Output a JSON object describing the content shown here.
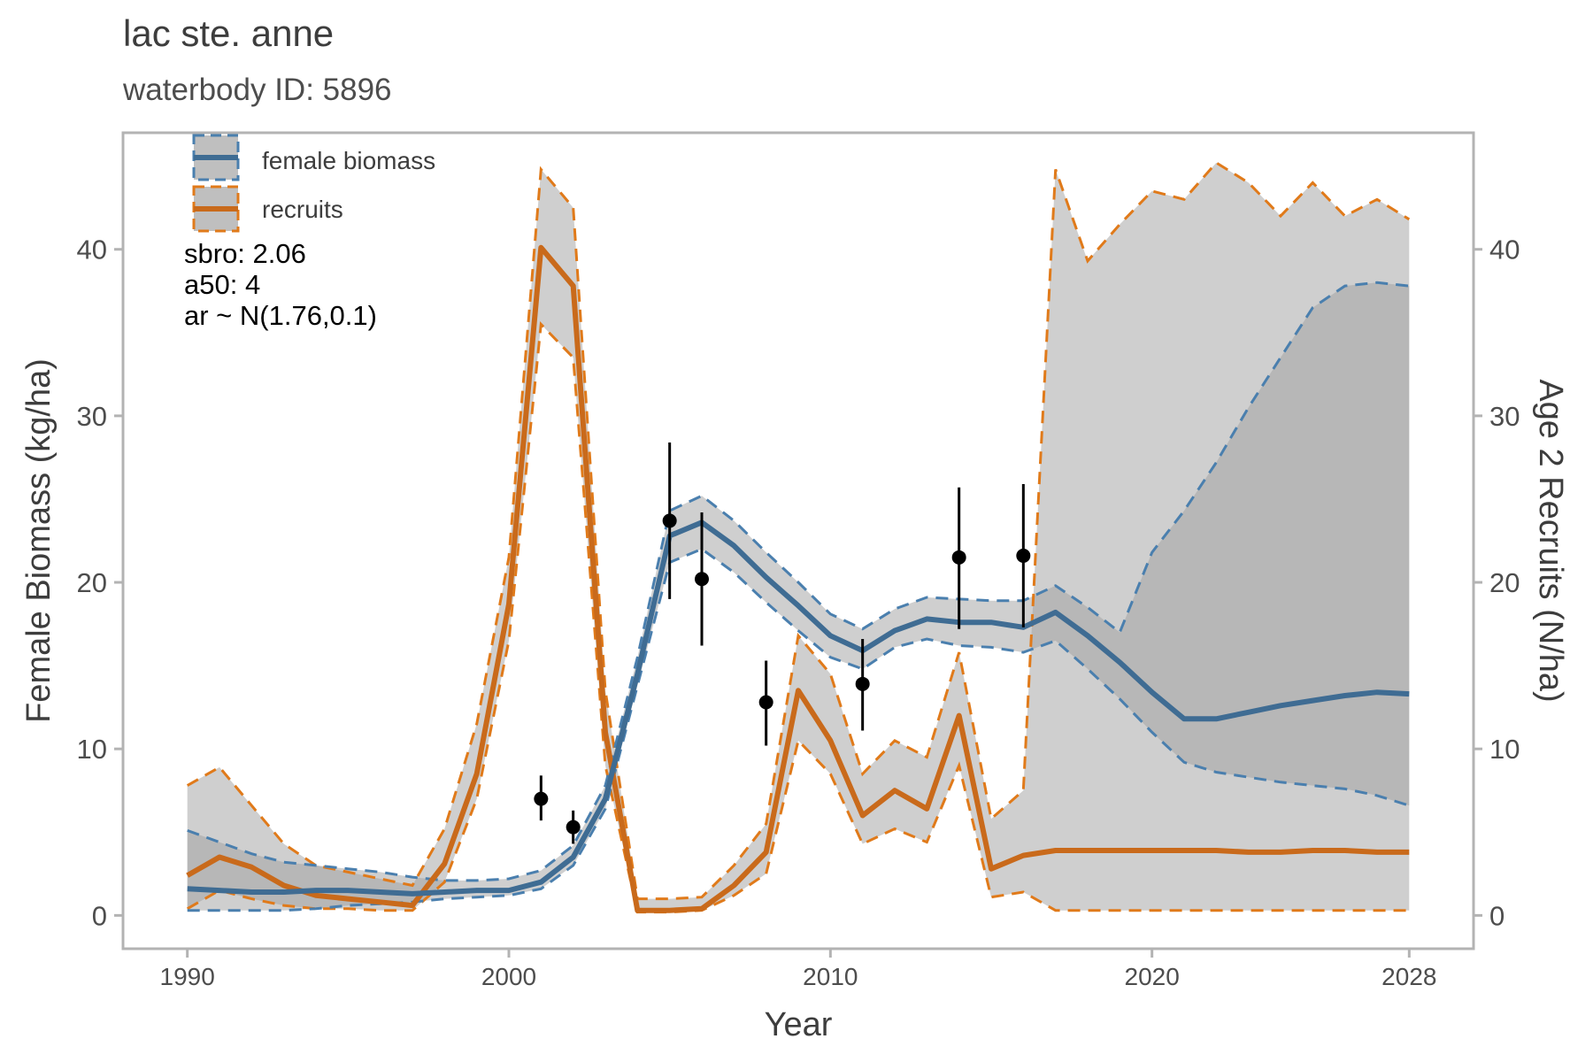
{
  "chart_data": {
    "type": "line",
    "title": "lac ste. anne",
    "subtitle": "waterbody ID: 5896",
    "xlabel": "Year",
    "ylabel_left": "Female Biomass (kg/ha)",
    "ylabel_right": "Age 2 Recruits (N/ha)",
    "xlim": [
      1988,
      2030
    ],
    "ylim": [
      -2,
      47
    ],
    "x_ticks": [
      1990,
      2000,
      2010,
      2020,
      2028
    ],
    "y_ticks": [
      0,
      10,
      20,
      30,
      40
    ],
    "grid": false,
    "legend_position": "top-left",
    "legend": [
      "female biomass",
      "recruits"
    ],
    "annotations": [
      "sbro: 2.06",
      "a50: 4",
      "ar ~ N(1.76,0.1)"
    ],
    "colors": {
      "female_biomass": "#3f6c93",
      "female_biomass_dash": "#4a7fae",
      "recruits": "#c96a1b",
      "recruits_dash": "#e07a1a",
      "band_light": "#cfcfcf",
      "band_dark": "#a6a6a6",
      "points": "#000000"
    },
    "series": [
      {
        "name": "female biomass",
        "x": [
          1990,
          1991,
          1992,
          1993,
          1994,
          1995,
          1996,
          1997,
          1998,
          1999,
          2000,
          2001,
          2002,
          2003,
          2004,
          2005,
          2006,
          2007,
          2008,
          2009,
          2010,
          2011,
          2012,
          2013,
          2014,
          2015,
          2016,
          2017,
          2018,
          2019,
          2020,
          2021,
          2022,
          2023,
          2024,
          2025,
          2026,
          2027,
          2028
        ],
        "median": [
          1.6,
          1.5,
          1.4,
          1.4,
          1.5,
          1.5,
          1.4,
          1.3,
          1.4,
          1.5,
          1.5,
          2.0,
          3.5,
          7.0,
          14.5,
          22.8,
          23.6,
          22.2,
          20.3,
          18.6,
          16.8,
          15.9,
          17.1,
          17.8,
          17.6,
          17.6,
          17.3,
          18.2,
          16.8,
          15.2,
          13.4,
          11.8,
          11.8,
          12.2,
          12.6,
          12.9,
          13.2,
          13.4,
          13.3
        ],
        "lower": [
          0.3,
          0.3,
          0.3,
          0.3,
          0.4,
          0.6,
          0.7,
          0.8,
          1.0,
          1.1,
          1.2,
          1.6,
          3.0,
          6.4,
          13.8,
          21.2,
          22.0,
          20.6,
          18.8,
          17.1,
          15.5,
          14.8,
          16.1,
          16.6,
          16.2,
          16.1,
          15.8,
          16.5,
          14.8,
          13.0,
          11.0,
          9.2,
          8.6,
          8.3,
          8.0,
          7.8,
          7.6,
          7.2,
          6.6
        ],
        "upper": [
          5.1,
          4.4,
          3.7,
          3.2,
          3.0,
          2.8,
          2.6,
          2.3,
          2.1,
          2.1,
          2.2,
          2.7,
          4.2,
          7.8,
          15.5,
          24.3,
          25.2,
          23.7,
          21.8,
          20.0,
          18.1,
          17.2,
          18.4,
          19.1,
          19.0,
          18.9,
          18.9,
          19.8,
          18.5,
          17.0,
          21.8,
          24.3,
          27.2,
          30.5,
          33.5,
          36.5,
          37.8,
          38.0,
          37.8
        ]
      },
      {
        "name": "recruits",
        "x": [
          1990,
          1991,
          1992,
          1993,
          1994,
          1995,
          1996,
          1997,
          1998,
          1999,
          2000,
          2001,
          2002,
          2003,
          2004,
          2005,
          2006,
          2007,
          2008,
          2009,
          2010,
          2011,
          2012,
          2013,
          2014,
          2015,
          2016,
          2017,
          2018,
          2019,
          2020,
          2021,
          2022,
          2023,
          2024,
          2025,
          2026,
          2027,
          2028
        ],
        "median": [
          2.4,
          3.5,
          2.9,
          1.8,
          1.2,
          1.0,
          0.8,
          0.6,
          3.1,
          8.5,
          18.7,
          40.1,
          37.8,
          11.0,
          0.3,
          0.3,
          0.4,
          1.8,
          3.8,
          13.5,
          10.5,
          6.0,
          7.5,
          6.4,
          12.0,
          2.8,
          3.6,
          3.9,
          3.9,
          3.9,
          3.9,
          3.9,
          3.9,
          3.8,
          3.8,
          3.9,
          3.9,
          3.8,
          3.8
        ],
        "lower": [
          0.4,
          1.5,
          1.0,
          0.6,
          0.4,
          0.4,
          0.3,
          0.3,
          2.0,
          7.0,
          16.5,
          35.5,
          33.5,
          9.0,
          0.2,
          0.2,
          0.3,
          1.2,
          2.5,
          10.5,
          8.5,
          4.3,
          5.2,
          4.4,
          9.0,
          1.1,
          1.4,
          0.3,
          0.3,
          0.3,
          0.3,
          0.3,
          0.3,
          0.3,
          0.3,
          0.3,
          0.3,
          0.3,
          0.3
        ],
        "upper": [
          7.8,
          8.9,
          6.6,
          4.3,
          3.0,
          2.6,
          2.2,
          1.8,
          5.2,
          11.5,
          21.5,
          44.8,
          42.5,
          13.5,
          1.0,
          1.0,
          1.1,
          3.0,
          5.5,
          16.8,
          14.5,
          8.5,
          10.5,
          9.5,
          15.8,
          5.8,
          7.5,
          44.8,
          39.3,
          41.5,
          43.5,
          43.0,
          45.2,
          44.0,
          42.0,
          44.0,
          42.0,
          43.0,
          41.8
        ]
      },
      {
        "name": "observed biomass",
        "type": "scatter",
        "x": [
          2001,
          2002,
          2005,
          2006,
          2008,
          2011,
          2014,
          2016
        ],
        "y": [
          7.0,
          5.3,
          23.7,
          20.2,
          12.8,
          13.9,
          21.5,
          21.6
        ],
        "y_low": [
          5.7,
          4.3,
          19.0,
          16.2,
          10.2,
          11.1,
          17.2,
          17.3
        ],
        "y_high": [
          8.4,
          6.3,
          28.4,
          24.2,
          15.3,
          16.6,
          25.7,
          25.9
        ]
      }
    ]
  }
}
